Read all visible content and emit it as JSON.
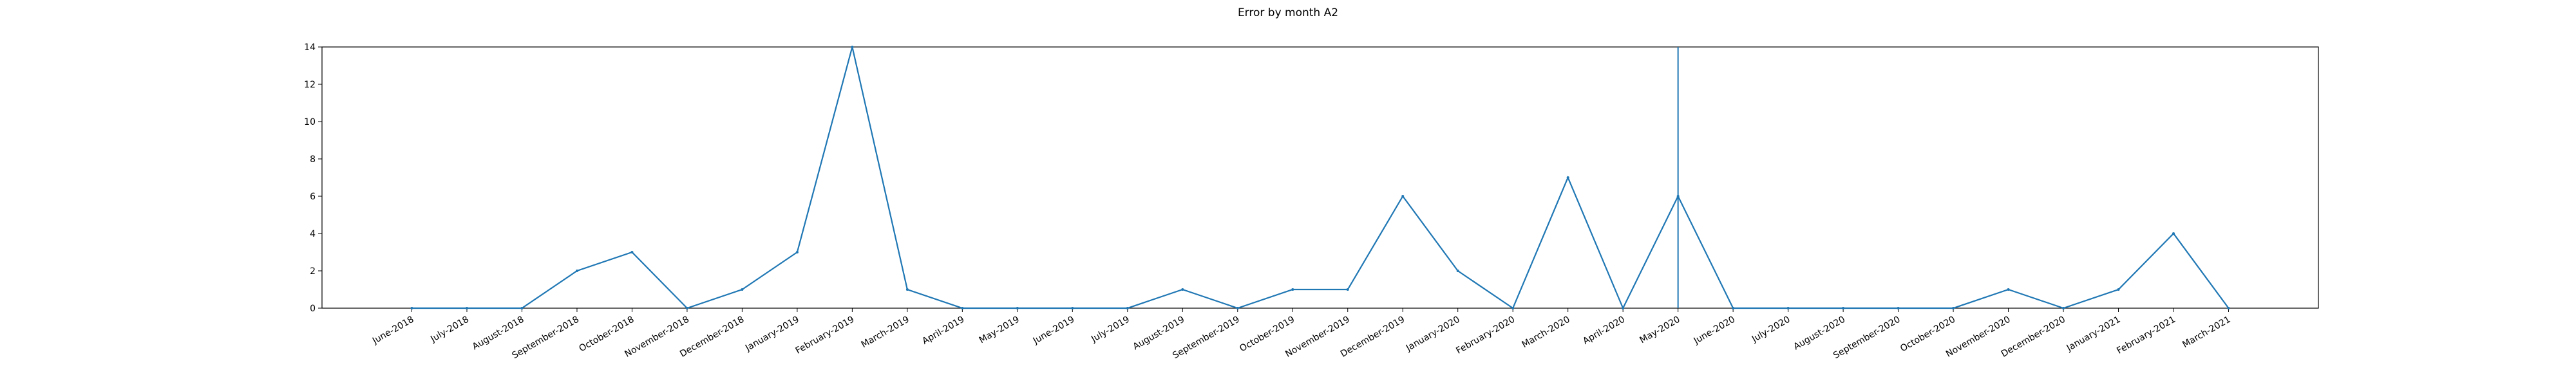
{
  "chart_data": {
    "type": "line",
    "title": "Error by month A2",
    "xlabel": "",
    "ylabel": "",
    "ylim": [
      0,
      14
    ],
    "yticks": [
      0,
      2,
      4,
      6,
      8,
      10,
      12,
      14
    ],
    "grid": false,
    "categories": [
      "June-2018",
      "July-2018",
      "August-2018",
      "September-2018",
      "October-2018",
      "November-2018",
      "December-2018",
      "January-2019",
      "February-2019",
      "March-2019",
      "April-2019",
      "May-2019",
      "June-2019",
      "July-2019",
      "August-2019",
      "September-2019",
      "October-2019",
      "November-2019",
      "December-2019",
      "January-2020",
      "February-2020",
      "March-2020",
      "April-2020",
      "May-2020",
      "June-2020",
      "July-2020",
      "August-2020",
      "September-2020",
      "October-2020",
      "November-2020",
      "December-2020",
      "January-2021",
      "February-2021",
      "March-2021"
    ],
    "values": [
      0,
      0,
      0,
      2,
      3,
      0,
      1,
      3,
      14,
      1,
      0,
      0,
      0,
      0,
      1,
      0,
      1,
      1,
      6,
      2,
      0,
      7,
      0,
      6,
      0,
      0,
      0,
      0,
      0,
      1,
      0,
      1,
      4,
      0
    ],
    "vertical_marker": "May-2020",
    "line_color": "#1f77b4"
  }
}
